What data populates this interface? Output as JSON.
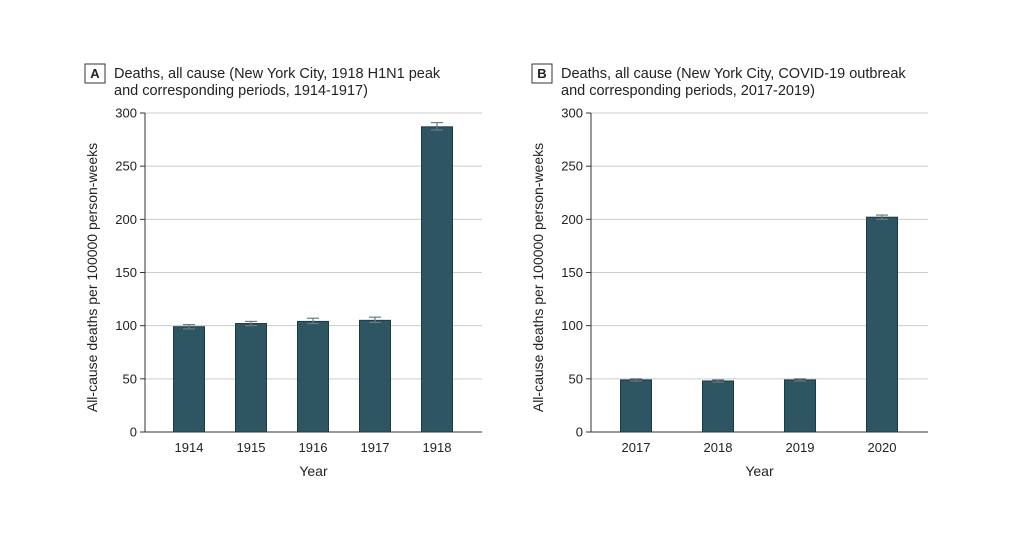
{
  "colors": {
    "bar": "#2e5662",
    "bar_edge": "#1c3a44",
    "error": "#6b7a80",
    "grid": "#cccccc",
    "axis": "#333333"
  },
  "chart_data": [
    {
      "type": "bar",
      "panel_label": "A",
      "title_lines": [
        "Deaths, all cause  (New York City, 1918 H1N1 peak",
        "and corresponding periods, 1914-1917)"
      ],
      "xlabel": "Year",
      "ylabel": "All-cause deaths per 100000 person-weeks",
      "ylim": [
        0,
        300
      ],
      "yticks": [
        "0",
        "50",
        "100",
        "150",
        "200",
        "250",
        "300"
      ],
      "grid": true,
      "categories": [
        "1914",
        "1915",
        "1916",
        "1917",
        "1918"
      ],
      "values": [
        99,
        102,
        104,
        105,
        287
      ],
      "error_low": [
        97,
        100,
        102,
        103,
        284
      ],
      "error_high": [
        101,
        104,
        107,
        108,
        291
      ]
    },
    {
      "type": "bar",
      "panel_label": "B",
      "title_lines": [
        "Deaths, all cause (New York City, COVID-19 outbreak",
        "and corresponding periods, 2017-2019)"
      ],
      "xlabel": "Year",
      "ylabel": "All-cause deaths per 100000 person-weeks",
      "ylim": [
        0,
        300
      ],
      "yticks": [
        "0",
        "50",
        "100",
        "150",
        "200",
        "250",
        "300"
      ],
      "grid": true,
      "categories": [
        "2017",
        "2018",
        "2019",
        "2020"
      ],
      "values": [
        49,
        48,
        49,
        202
      ],
      "error_low": [
        48,
        47,
        48,
        200
      ],
      "error_high": [
        50,
        49,
        50,
        204
      ]
    }
  ]
}
